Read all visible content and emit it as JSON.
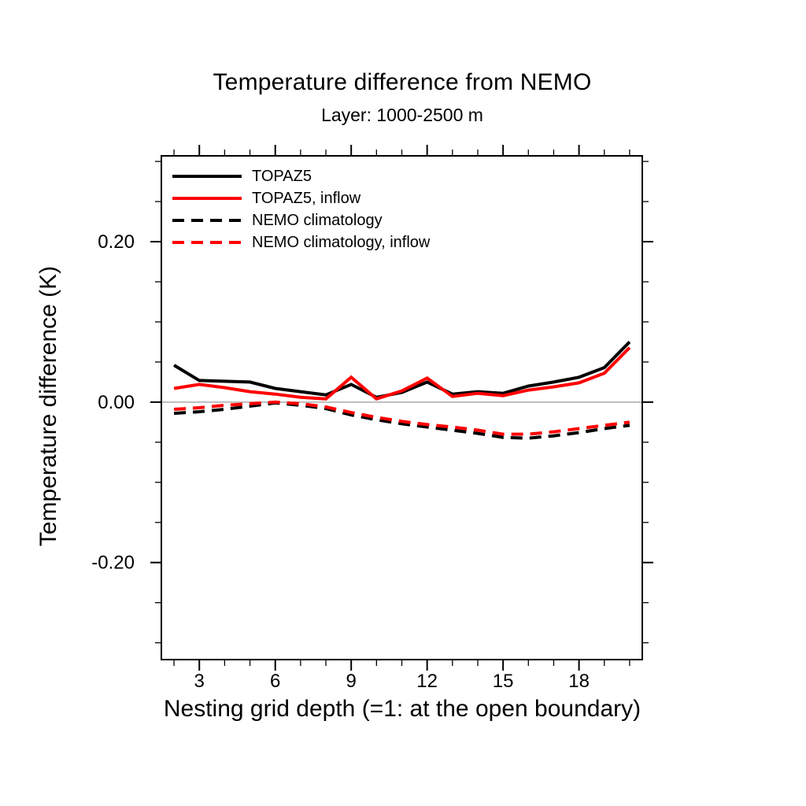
{
  "title": "Temperature difference from NEMO",
  "subtitle": "Layer: 1000-2500 m",
  "colors": {
    "series_black": "#000000",
    "series_red": "#ff0000",
    "zero_line": "#ababab",
    "frame": "#000000",
    "background": "#ffffff"
  },
  "chart_data": {
    "type": "line",
    "title": "Temperature difference from NEMO",
    "subtitle": "Layer: 1000-2500 m",
    "xlabel": "Nesting grid depth (=1: at the open boundary)",
    "ylabel": "Temperature difference (K)",
    "xlim": [
      1.5,
      20.5
    ],
    "ylim": [
      -0.321,
      0.307
    ],
    "xticks_major": [
      3,
      6,
      9,
      12,
      15,
      18
    ],
    "xtick_labels": [
      "3",
      "6",
      "9",
      "12",
      "15",
      "18"
    ],
    "xtick_minor_step": 1,
    "yticks_major": [
      -0.2,
      0,
      0.2
    ],
    "ytick_labels": [
      "-0.20",
      "0.00",
      "0.20"
    ],
    "ytick_minor_step": 0.05,
    "zero_line": 0,
    "grid": false,
    "legend_position": "inside-top-left",
    "x": [
      2,
      3,
      4,
      5,
      6,
      7,
      8,
      9,
      10,
      11,
      12,
      13,
      14,
      15,
      16,
      17,
      18,
      19,
      20
    ],
    "series": [
      {
        "name": "TOPAZ5",
        "color": "#000000",
        "style": "solid",
        "values": [
          0.046,
          0.027,
          0.026,
          0.025,
          0.017,
          0.013,
          0.009,
          0.022,
          0.006,
          0.012,
          0.025,
          0.01,
          0.013,
          0.011,
          0.02,
          0.025,
          0.031,
          0.043,
          0.075
        ]
      },
      {
        "name": "TOPAZ5, inflow",
        "color": "#ff0000",
        "style": "solid",
        "values": [
          0.017,
          0.022,
          0.018,
          0.013,
          0.01,
          0.006,
          0.004,
          0.031,
          0.004,
          0.014,
          0.03,
          0.007,
          0.011,
          0.008,
          0.015,
          0.019,
          0.024,
          0.036,
          0.068
        ]
      },
      {
        "name": "NEMO climatology",
        "color": "#000000",
        "style": "dashed",
        "values": [
          -0.014,
          -0.012,
          -0.009,
          -0.005,
          -0.001,
          -0.004,
          -0.008,
          -0.016,
          -0.022,
          -0.027,
          -0.031,
          -0.035,
          -0.039,
          -0.044,
          -0.045,
          -0.042,
          -0.038,
          -0.033,
          -0.029
        ]
      },
      {
        "name": "NEMO climatology, inflow",
        "color": "#ff0000",
        "style": "dashed",
        "values": [
          -0.009,
          -0.007,
          -0.004,
          -0.002,
          0.0,
          -0.002,
          -0.006,
          -0.013,
          -0.019,
          -0.024,
          -0.028,
          -0.031,
          -0.035,
          -0.04,
          -0.04,
          -0.037,
          -0.033,
          -0.029,
          -0.025
        ]
      }
    ]
  }
}
